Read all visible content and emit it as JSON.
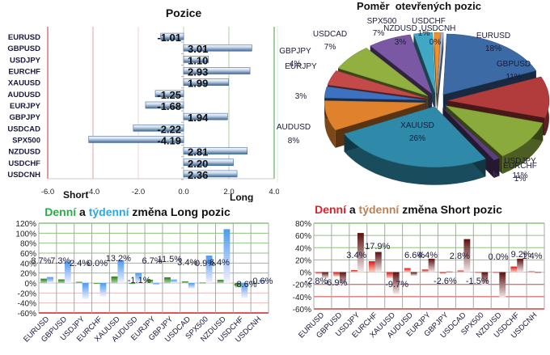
{
  "chart_data": [
    {
      "id": "positions",
      "type": "bar",
      "orientation": "horizontal",
      "title": "Pozice",
      "categories": [
        "EURUSD",
        "GBPUSD",
        "USDJPY",
        "EURCHF",
        "XAUUSD",
        "AUDUSD",
        "EURJPY",
        "GBPJPY",
        "USDCAD",
        "SPX500",
        "NZDUSD",
        "USDCHF",
        "USDCNH"
      ],
      "values": [
        -1.01,
        3.01,
        1.1,
        2.93,
        1.99,
        -1.25,
        -1.68,
        1.94,
        -2.22,
        -4.19,
        2.81,
        2.2,
        2.36
      ],
      "value_labels": [
        "-1.01",
        "3.01",
        "1.10",
        "2.93",
        "1.99",
        "-1.25",
        "-1.68",
        "1.94",
        "-2.22",
        "-4.19",
        "2.81",
        "2.20",
        "2.36"
      ],
      "xlim": [
        -6.0,
        4.0
      ],
      "xticks": [
        "-6.0",
        "-4.0",
        "-2.0",
        "0.0",
        "2.0",
        "4.0"
      ],
      "xtick_values": [
        -6,
        -4,
        -2,
        0,
        2,
        4
      ],
      "side_labels": {
        "short": "Short",
        "long": "Long"
      },
      "gridline_colors": [
        "#c0303a",
        "#e0a0a0",
        "#f0d0d0",
        "#c8c8c8",
        "#a8d0a0",
        "#40a040"
      ],
      "bar_color": "#4f7fb8"
    },
    {
      "id": "open-positions-ratio",
      "type": "pie",
      "title": "Poměr  otevřených pozic",
      "slices": [
        {
          "label": "EURUSD",
          "value": 18,
          "pct_label": "18%",
          "color": "#3c6aa4"
        },
        {
          "label": "GBPUSD",
          "value": 11,
          "pct_label": "11%",
          "color": "#b23c3c"
        },
        {
          "label": "EURCHF",
          "value": 11,
          "pct_label": "11%",
          "color": "#8aaa3c"
        },
        {
          "label": "USDJPY",
          "value": 1,
          "pct_label": "1%",
          "color": "#5b3f7a"
        },
        {
          "label": "XAUUSD",
          "value": 26,
          "pct_label": "26%",
          "color": "#2e8aa8"
        },
        {
          "label": "AUDUSD",
          "value": 8,
          "pct_label": "8%",
          "color": "#e0822c"
        },
        {
          "label": "EURJPY",
          "value": 3,
          "pct_label": "3%",
          "color": "#3c72c0"
        },
        {
          "label": "GBPJPY",
          "value": 4,
          "pct_label": "4%",
          "color": "#c44a4a"
        },
        {
          "label": "USDCAD",
          "value": 7,
          "pct_label": "7%",
          "color": "#92b040"
        },
        {
          "label": "SPX500",
          "value": 7,
          "pct_label": "7%",
          "color": "#7b58a4"
        },
        {
          "label": "NZDUSD",
          "value": 3,
          "pct_label": "3%",
          "color": "#40a8c4"
        },
        {
          "label": "USDCHF",
          "value": 1,
          "pct_label": "1%",
          "color": "#f0902c"
        },
        {
          "label": "USDCNH",
          "value": 0,
          "pct_label": "0%",
          "color": "#a0b8dc"
        }
      ]
    },
    {
      "id": "long-change",
      "type": "bar",
      "title_parts": [
        {
          "text": "Denní",
          "color": "#2ea84a"
        },
        {
          "text": " a ",
          "color": "#111111"
        },
        {
          "text": "týdenní",
          "color": "#2aa8e0"
        },
        {
          "text": " změna Long pozic",
          "color": "#111111"
        }
      ],
      "categories": [
        "EURUSD",
        "GBPUSD",
        "USDJPY",
        "EURCHF",
        "XAUUSD",
        "AUDUSD",
        "EURJPY",
        "GBPJPY",
        "USDCAD",
        "SPX500",
        "NZDUSD",
        "USDCHF",
        "USDCNH"
      ],
      "series": [
        {
          "name": "Denní",
          "color": "#3a8a2a",
          "values": [
            8.7,
            7.3,
            2.4,
            0.0,
            13.2,
            -1.1,
            6.7,
            11.5,
            3.4,
            0.9,
            6.4,
            -8.6,
            -0.6
          ],
          "labels": [
            "8.7%",
            "7.3%",
            "2.4%",
            "0.0%",
            "13.2%",
            "-1.1%",
            "6.7%",
            "11.5%",
            "3.4%",
            "0.9%",
            "6.4%",
            "-8.6%",
            "-0.6%"
          ]
        },
        {
          "name": "Týdenní",
          "color": "#4a9af0",
          "values": [
            12,
            43,
            -32,
            -27,
            46,
            20,
            -4,
            7,
            -11,
            55,
            108,
            -30,
            6
          ]
        }
      ],
      "ylim": [
        -60,
        120
      ],
      "yticks": [
        "120%",
        "100%",
        "80%",
        "60%",
        "40%",
        "20%",
        "0%",
        "-20%",
        "-40%",
        "-60%"
      ],
      "ytick_values": [
        120,
        100,
        80,
        60,
        40,
        20,
        0,
        -20,
        -40,
        -60
      ]
    },
    {
      "id": "short-change",
      "type": "bar",
      "title_parts": [
        {
          "text": "Denní",
          "color": "#e0202a"
        },
        {
          "text": " a ",
          "color": "#111111"
        },
        {
          "text": "týdenní",
          "color": "#c08050"
        },
        {
          "text": " změna Short pozic",
          "color": "#111111"
        }
      ],
      "categories": [
        "EURUSD",
        "GBPUSD",
        "USDJPY",
        "EURCHF",
        "XAUUSD",
        "AUDUSD",
        "EURJPY",
        "GBPJPY",
        "USDCAD",
        "SPX500",
        "NZDUSD",
        "USDCHF",
        "USDCNH"
      ],
      "series": [
        {
          "name": "Denní",
          "color": "#d01010",
          "values": [
            -2.8,
            -6.9,
            3.4,
            17.9,
            -9.7,
            6.6,
            4.4,
            -2.6,
            2.8,
            -1.5,
            0.0,
            9.2,
            1.4
          ],
          "labels": [
            "-2.8%",
            "-6.9%",
            "3.4%",
            "17.9%",
            "-9.7%",
            "6.6%",
            "4.4%",
            "-2.6%",
            "2.8%",
            "-1.5%",
            "0.0%",
            "9.2%",
            "1.4%"
          ]
        },
        {
          "name": "Týdenní",
          "color": "#6a1a1a",
          "values": [
            -10,
            -22,
            64,
            33,
            -36,
            -6,
            22,
            1,
            54,
            -22,
            -42,
            22,
            0
          ]
        }
      ],
      "ylim": [
        -60,
        80
      ],
      "yticks": [
        "80%",
        "60%",
        "40%",
        "20%",
        "0%",
        "-20%",
        "-40%",
        "-60%"
      ],
      "ytick_values": [
        80,
        60,
        40,
        20,
        0,
        -20,
        -40,
        -60
      ]
    }
  ]
}
